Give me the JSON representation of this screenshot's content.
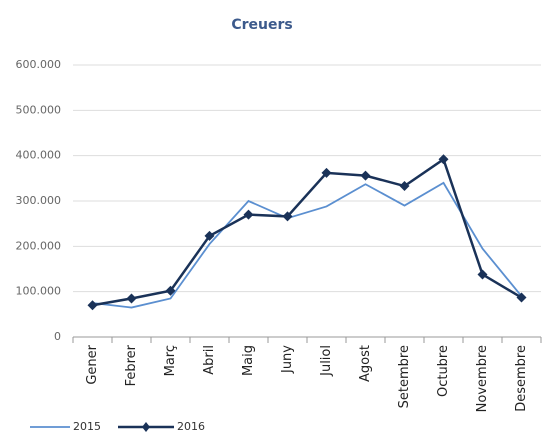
{
  "chart_data": {
    "type": "line",
    "title": "Creuers",
    "categories": [
      "Gener",
      "Febrer",
      "Març",
      "Abril",
      "Maig",
      "Juny",
      "Juliol",
      "Agost",
      "Setembre",
      "Octubre",
      "Novembre",
      "Desembre"
    ],
    "series": [
      {
        "name": "2015",
        "color": "#5b8fd0",
        "values": [
          75000,
          65000,
          85000,
          205000,
          300000,
          262000,
          288000,
          337000,
          290000,
          340000,
          195000,
          90000
        ]
      },
      {
        "name": "2016",
        "color": "#1a3258",
        "values": [
          70000,
          85000,
          102000,
          223000,
          270000,
          266000,
          362000,
          356000,
          333000,
          392000,
          138000,
          87000
        ]
      }
    ],
    "ylim": [
      0,
      600000
    ],
    "yticks": [
      0,
      {
        "value": 100000,
        "label": "100.000"
      },
      {
        "value": 200000,
        "label": "200.000"
      },
      {
        "value": 300000,
        "label": "300.000"
      },
      {
        "value": 400000,
        "label": "400.000"
      },
      {
        "value": 500000,
        "label": "500.000"
      },
      {
        "value": 600000,
        "label": "600.000"
      }
    ],
    "grid": true,
    "legend": "bottom"
  }
}
